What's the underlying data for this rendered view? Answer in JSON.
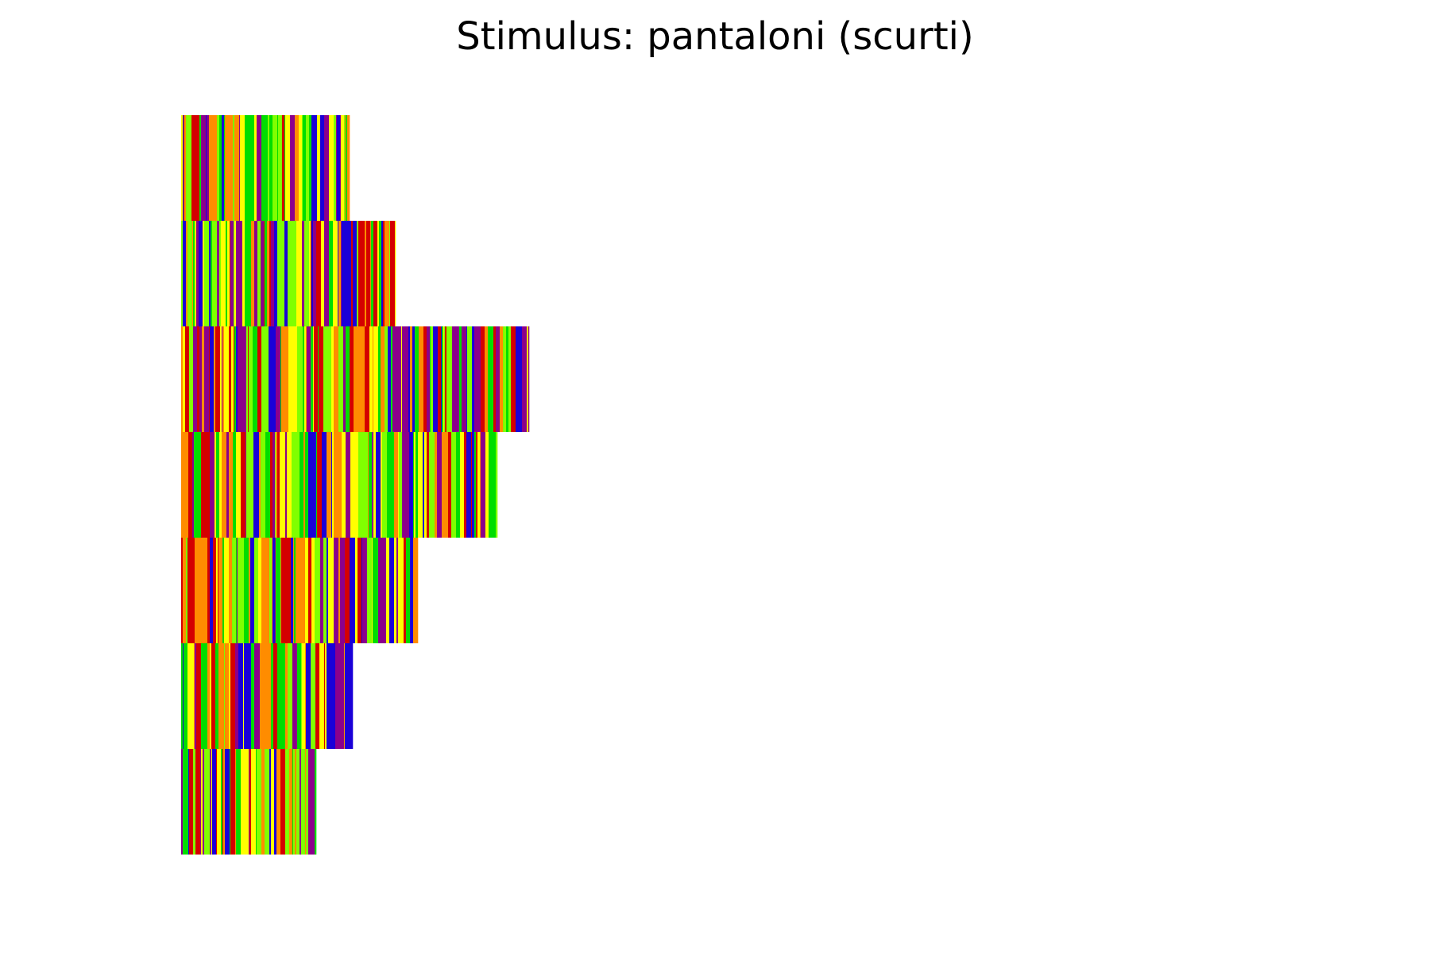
{
  "chart_data": {
    "type": "heatmap",
    "title": "Stimulus: pantaloni (scurti)",
    "palette": [
      "#d40000",
      "#ff8c00",
      "#ffff00",
      "#80ff00",
      "#00dd00",
      "#1a00d8",
      "#8b008b"
    ],
    "rows": [
      {
        "length": 212,
        "seed": 11
      },
      {
        "length": 270,
        "seed": 23
      },
      {
        "length": 438,
        "seed": 37
      },
      {
        "length": 398,
        "seed": 41
      },
      {
        "length": 298,
        "seed": 53
      },
      {
        "length": 216,
        "seed": 67
      },
      {
        "length": 170,
        "seed": 79
      }
    ],
    "grid": false,
    "axes_visible": false
  }
}
